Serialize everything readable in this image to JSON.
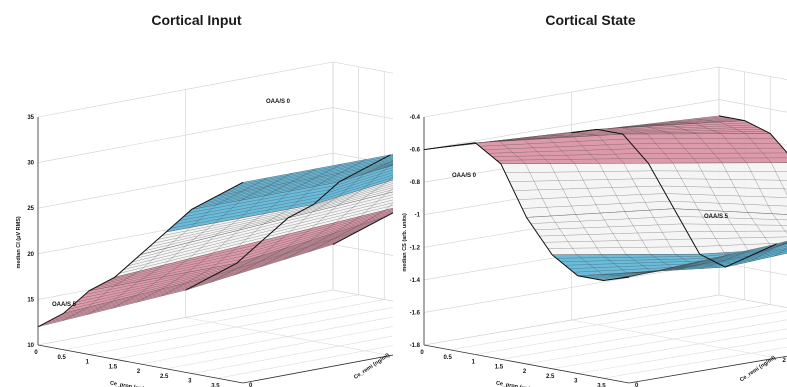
{
  "chart_data": [
    {
      "type": "surface",
      "title": "Cortical Input",
      "zlabel": "median CI (μV RMS)",
      "zticks": [
        "10",
        "15",
        "20",
        "25",
        "30",
        "35"
      ],
      "zlim": [
        10,
        35
      ],
      "xlabel": "Ce_prop (μg/ml)",
      "xticks": [
        "0",
        "0.5",
        "1",
        "1.5",
        "2",
        "2.5",
        "3",
        "3.5",
        "4"
      ],
      "ylabel": "Ce_remi (ng/ml)",
      "yticks": [
        "0",
        "2",
        "4"
      ],
      "grid": true,
      "annotations": [
        "OAA/S 5",
        "OAA/S 0"
      ],
      "colors": {
        "pink": "#d98fa2",
        "blue": "#5bb4d6",
        "mesh": "#3a3a3a"
      },
      "series": [
        {
          "name": "Ce_remi = 0",
          "values": [
            12,
            14,
            17,
            19,
            22,
            25,
            28,
            30,
            32
          ]
        },
        {
          "name": "Ce_remi = 2",
          "values": [
            13,
            15,
            17,
            20,
            23,
            25,
            28,
            30,
            32
          ]
        },
        {
          "name": "Ce_remi = 4",
          "values": [
            15,
            17,
            19,
            21,
            24,
            27,
            30,
            31,
            33
          ]
        }
      ]
    },
    {
      "type": "surface",
      "title": "Cortical State",
      "zlabel": "median CS (arb. units)",
      "zticks": [
        "-1.8",
        "-1.6",
        "-1.4",
        "-1.2",
        "-1",
        "-0.8",
        "-0.6",
        "-0.4"
      ],
      "zlim": [
        -1.8,
        -0.4
      ],
      "xlabel": "Ce_prop (μg/ml)",
      "xticks": [
        "0",
        "0.5",
        "1",
        "1.5",
        "2",
        "2.5",
        "3",
        "3.5",
        "4"
      ],
      "ylabel": "Ce_remi (ng/ml)",
      "yticks": [
        "0",
        "2",
        "4"
      ],
      "grid": true,
      "annotations": [
        "OAA/S 5",
        "OAA/S 0"
      ],
      "colors": {
        "pink": "#d98fa2",
        "blue": "#5bb4d6",
        "mesh": "#3a3a3a"
      },
      "series": [
        {
          "name": "Ce_remi = 0",
          "values": [
            -0.6,
            -0.55,
            -0.5,
            -0.6,
            -0.9,
            -1.1,
            -1.2,
            -1.2,
            -1.15
          ]
        },
        {
          "name": "Ce_remi = 2",
          "values": [
            -0.65,
            -0.6,
            -0.6,
            -0.75,
            -1.0,
            -1.25,
            -1.3,
            -1.2,
            -1.1
          ]
        },
        {
          "name": "Ce_remi = 4",
          "values": [
            -0.7,
            -0.7,
            -0.75,
            -0.9,
            -1.2,
            -1.35,
            -1.25,
            -1.05,
            -1.0
          ]
        }
      ]
    }
  ]
}
